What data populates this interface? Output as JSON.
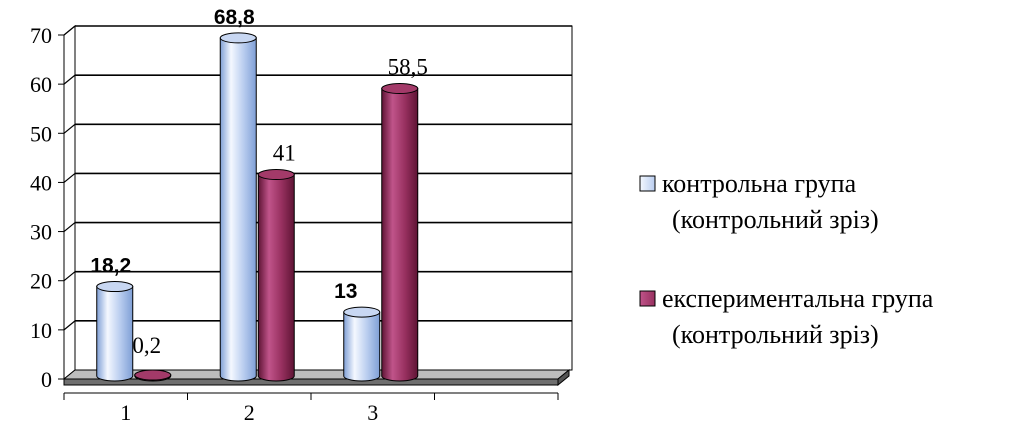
{
  "chart_data": {
    "type": "bar",
    "style": "3d-cylinder",
    "categories": [
      "1",
      "2",
      "3",
      ""
    ],
    "series": [
      {
        "name": "контрольна група (контрольний зріз)",
        "legend_lines": [
          "контрольна група",
          "(контрольний зріз)"
        ],
        "values": [
          18.2,
          68.8,
          13,
          null
        ],
        "labels": [
          "18,2",
          "68,8",
          "13",
          ""
        ],
        "label_style": "bold-sans",
        "color_light": "#f4f8ff",
        "color_mid": "#b9cdef",
        "color_dark": "#7f9fd6",
        "color_top": "#c8d7f2"
      },
      {
        "name": "експериментальна група (контрольний зріз)",
        "legend_lines": [
          "експериментальна група",
          "(контрольний зріз)"
        ],
        "values": [
          0.2,
          41,
          58.5,
          null
        ],
        "labels": [
          "0,2",
          "41",
          "58,5",
          ""
        ],
        "label_style": "serif",
        "color_light": "#c0548a",
        "color_mid": "#97305f",
        "color_dark": "#5e1434",
        "color_top": "#a33a69"
      }
    ],
    "y_ticks": [
      "0",
      "10",
      "20",
      "30",
      "40",
      "50",
      "60",
      "70"
    ],
    "ylim": [
      0,
      70
    ],
    "grid": true,
    "legend_position": "right",
    "title": "",
    "xlabel": "",
    "ylabel": ""
  }
}
